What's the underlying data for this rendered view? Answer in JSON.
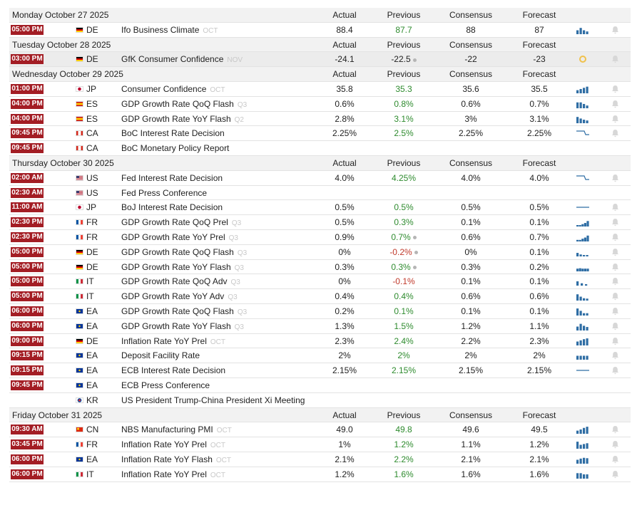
{
  "columns": {
    "actual": "Actual",
    "previous": "Previous",
    "consensus": "Consensus",
    "forecast": "Forecast"
  },
  "colors": {
    "time_badge": "#a31d24",
    "positive": "#2e8b2e",
    "negative": "#c0392b",
    "sparkline": "#2e6da4"
  },
  "days": [
    {
      "date": "Monday October 27 2025",
      "events": [
        {
          "time": "05:00 PM",
          "country": "DE",
          "flag": [
            "#000000",
            "#dd0000",
            "#ffce00"
          ],
          "event": "Ifo Business Climate",
          "ref": "OCT",
          "actual": "88.4",
          "previous": "87.7",
          "previous_color": "green",
          "consensus": "88",
          "forecast": "87",
          "spark": [
            0.5,
            0.8,
            0.5,
            0.35
          ]
        }
      ]
    },
    {
      "date": "Tuesday October 28 2025",
      "events": [
        {
          "time": "03:00 PM",
          "country": "DE",
          "flag": [
            "#000000",
            "#dd0000",
            "#ffce00"
          ],
          "event": "GfK Consumer Confidence",
          "ref": "NOV",
          "actual": "-24.1",
          "previous": "-22.5",
          "revised": true,
          "consensus": "-22",
          "forecast": "-23",
          "highlight": true,
          "loading": true
        }
      ]
    },
    {
      "date": "Wednesday October 29 2025",
      "events": [
        {
          "time": "01:00 PM",
          "country": "JP",
          "flag": "jp",
          "event": "Consumer Confidence",
          "ref": "OCT",
          "actual": "35.8",
          "previous": "35.3",
          "previous_color": "green",
          "consensus": "35.6",
          "forecast": "35.5",
          "spark": [
            0.4,
            0.55,
            0.7,
            0.85
          ]
        },
        {
          "time": "04:00 PM",
          "country": "ES",
          "flag": [
            "#c60b1e",
            "#ffc400",
            "#c60b1e"
          ],
          "event": "GDP Growth Rate QoQ Flash",
          "ref": "Q3",
          "actual": "0.6%",
          "previous": "0.8%",
          "previous_color": "green",
          "consensus": "0.6%",
          "forecast": "0.7%",
          "spark": [
            0.75,
            0.75,
            0.55,
            0.35
          ]
        },
        {
          "time": "04:00 PM",
          "country": "ES",
          "flag": [
            "#c60b1e",
            "#ffc400",
            "#c60b1e"
          ],
          "event": "GDP Growth Rate YoY Flash",
          "ref": "Q2",
          "actual": "2.8%",
          "previous": "3.1%",
          "previous_color": "green",
          "consensus": "3%",
          "forecast": "3.1%",
          "spark": [
            0.8,
            0.6,
            0.45,
            0.35
          ]
        },
        {
          "time": "09:45 PM",
          "country": "CA",
          "flag": "ca",
          "event": "BoC Interest Rate Decision",
          "ref": "",
          "actual": "2.25%",
          "previous": "2.5%",
          "previous_color": "green",
          "consensus": "2.25%",
          "forecast": "2.25%",
          "spark_type": "step"
        },
        {
          "time": "09:45 PM",
          "country": "CA",
          "flag": "ca",
          "event": "BoC Monetary Policy Report",
          "ref": "",
          "actual": "",
          "previous": "",
          "consensus": "",
          "forecast": ""
        }
      ]
    },
    {
      "date": "Thursday October 30 2025",
      "events": [
        {
          "time": "02:00 AM",
          "country": "US",
          "flag": "us",
          "event": "Fed Interest Rate Decision",
          "ref": "",
          "actual": "4.0%",
          "previous": "4.25%",
          "previous_color": "green",
          "consensus": "4.0%",
          "forecast": "4.0%",
          "spark_type": "step"
        },
        {
          "time": "02:30 AM",
          "country": "US",
          "flag": "us",
          "event": "Fed Press Conference",
          "ref": "",
          "actual": "",
          "previous": "",
          "consensus": "",
          "forecast": ""
        },
        {
          "time": "11:00 AM",
          "country": "JP",
          "flag": "jp",
          "event": "BoJ Interest Rate Decision",
          "ref": "",
          "actual": "0.5%",
          "previous": "0.5%",
          "previous_color": "green",
          "consensus": "0.5%",
          "forecast": "0.5%",
          "spark_type": "flat"
        },
        {
          "time": "02:30 PM",
          "country": "FR",
          "flag": [
            "#0055a4",
            "#ffffff",
            "#ef4135"
          ],
          "event": "GDP Growth Rate QoQ Prel",
          "ref": "Q3",
          "actual": "0.5%",
          "previous": "0.3%",
          "previous_color": "green",
          "consensus": "0.1%",
          "forecast": "0.1%",
          "spark": [
            0.15,
            0.15,
            0.3,
            0.45,
            0.7
          ]
        },
        {
          "time": "02:30 PM",
          "country": "FR",
          "flag": [
            "#0055a4",
            "#ffffff",
            "#ef4135"
          ],
          "event": "GDP Growth Rate YoY Prel",
          "ref": "Q3",
          "actual": "0.9%",
          "previous": "0.7%",
          "revised": true,
          "previous_color": "green",
          "consensus": "0.6%",
          "forecast": "0.7%",
          "spark": [
            0.2,
            0.2,
            0.35,
            0.5,
            0.75
          ]
        },
        {
          "time": "05:00 PM",
          "country": "DE",
          "flag": [
            "#000000",
            "#dd0000",
            "#ffce00"
          ],
          "event": "GDP Growth Rate QoQ Flash",
          "ref": "Q3",
          "actual": "0%",
          "previous": "-0.2%",
          "revised": true,
          "previous_color": "red",
          "consensus": "0%",
          "forecast": "0.1%",
          "spark": [
            0.45,
            0.25,
            0.15,
            0.1
          ]
        },
        {
          "time": "05:00 PM",
          "country": "DE",
          "flag": [
            "#000000",
            "#dd0000",
            "#ffce00"
          ],
          "event": "GDP Growth Rate YoY Flash",
          "ref": "Q3",
          "actual": "0.3%",
          "previous": "0.3%",
          "revised": true,
          "previous_color": "green",
          "consensus": "0.3%",
          "forecast": "0.2%",
          "spark": [
            0.35,
            0.4,
            0.35,
            0.35,
            0.35
          ]
        },
        {
          "time": "05:00 PM",
          "country": "IT",
          "flag": [
            "#009246",
            "#ffffff",
            "#ce2b37"
          ],
          "event": "GDP Growth Rate QoQ Adv",
          "ref": "Q3",
          "actual": "0%",
          "previous": "-0.1%",
          "previous_color": "red",
          "consensus": "0.1%",
          "forecast": "0.1%",
          "spark": [
            0.55,
            0.3,
            0.15
          ]
        },
        {
          "time": "05:00 PM",
          "country": "IT",
          "flag": [
            "#009246",
            "#ffffff",
            "#ce2b37"
          ],
          "event": "GDP Growth Rate YoY Adv",
          "ref": "Q3",
          "actual": "0.4%",
          "previous": "0.4%",
          "previous_color": "green",
          "consensus": "0.6%",
          "forecast": "0.6%",
          "spark": [
            0.8,
            0.5,
            0.3,
            0.25
          ]
        },
        {
          "time": "06:00 PM",
          "country": "EA",
          "flag": "eu",
          "event": "GDP Growth Rate QoQ Flash",
          "ref": "Q3",
          "actual": "0.2%",
          "previous": "0.1%",
          "previous_color": "green",
          "consensus": "0.1%",
          "forecast": "0.1%",
          "spark": [
            0.9,
            0.6,
            0.3,
            0.3
          ]
        },
        {
          "time": "06:00 PM",
          "country": "EA",
          "flag": "eu",
          "event": "GDP Growth Rate YoY Flash",
          "ref": "Q3",
          "actual": "1.3%",
          "previous": "1.5%",
          "previous_color": "green",
          "consensus": "1.2%",
          "forecast": "1.1%",
          "spark": [
            0.5,
            0.85,
            0.6,
            0.45
          ]
        },
        {
          "time": "09:00 PM",
          "country": "DE",
          "flag": [
            "#000000",
            "#dd0000",
            "#ffce00"
          ],
          "event": "Inflation Rate YoY Prel",
          "ref": "OCT",
          "actual": "2.3%",
          "previous": "2.4%",
          "previous_color": "green",
          "consensus": "2.2%",
          "forecast": "2.3%",
          "spark": [
            0.5,
            0.65,
            0.8,
            0.9
          ]
        },
        {
          "time": "09:15 PM",
          "country": "EA",
          "flag": "eu",
          "event": "Deposit Facility Rate",
          "ref": "",
          "actual": "2%",
          "previous": "2%",
          "previous_color": "green",
          "consensus": "2%",
          "forecast": "2%",
          "spark": [
            0.5,
            0.5,
            0.5,
            0.5
          ]
        },
        {
          "time": "09:15 PM",
          "country": "EA",
          "flag": "eu",
          "event": "ECB Interest Rate Decision",
          "ref": "",
          "actual": "2.15%",
          "previous": "2.15%",
          "previous_color": "green",
          "consensus": "2.15%",
          "forecast": "2.15%",
          "spark_type": "flat"
        },
        {
          "time": "09:45 PM",
          "country": "EA",
          "flag": "eu",
          "event": "ECB Press Conference",
          "ref": "",
          "actual": "",
          "previous": "",
          "consensus": "",
          "forecast": ""
        },
        {
          "time": "",
          "country": "KR",
          "flag": "kr",
          "event": "US President Trump-China President Xi Meeting",
          "ref": "",
          "actual": "",
          "previous": "",
          "consensus": "",
          "forecast": ""
        }
      ]
    },
    {
      "date": "Friday October 31 2025",
      "events": [
        {
          "time": "09:30 AM",
          "country": "CN",
          "flag": "cn",
          "event": "NBS Manufacturing PMI",
          "ref": "OCT",
          "actual": "49.0",
          "previous": "49.8",
          "previous_color": "green",
          "consensus": "49.6",
          "forecast": "49.5",
          "spark": [
            0.4,
            0.55,
            0.75,
            0.9
          ]
        },
        {
          "time": "03:45 PM",
          "country": "FR",
          "flag": [
            "#0055a4",
            "#ffffff",
            "#ef4135"
          ],
          "event": "Inflation Rate YoY Prel",
          "ref": "OCT",
          "actual": "1%",
          "previous": "1.2%",
          "previous_color": "green",
          "consensus": "1.1%",
          "forecast": "1.2%",
          "spark": [
            0.9,
            0.5,
            0.6,
            0.7
          ]
        },
        {
          "time": "06:00 PM",
          "country": "EA",
          "flag": "eu",
          "event": "Inflation Rate YoY Flash",
          "ref": "OCT",
          "actual": "2.1%",
          "previous": "2.2%",
          "previous_color": "green",
          "consensus": "2.1%",
          "forecast": "2.1%",
          "spark": [
            0.5,
            0.65,
            0.75,
            0.7
          ]
        },
        {
          "time": "06:00 PM",
          "country": "IT",
          "flag": [
            "#009246",
            "#ffffff",
            "#ce2b37"
          ],
          "event": "Inflation Rate YoY Prel",
          "ref": "OCT",
          "actual": "1.2%",
          "previous": "1.6%",
          "previous_color": "green",
          "consensus": "1.6%",
          "forecast": "1.6%",
          "spark": [
            0.7,
            0.7,
            0.55,
            0.55
          ]
        }
      ]
    }
  ]
}
